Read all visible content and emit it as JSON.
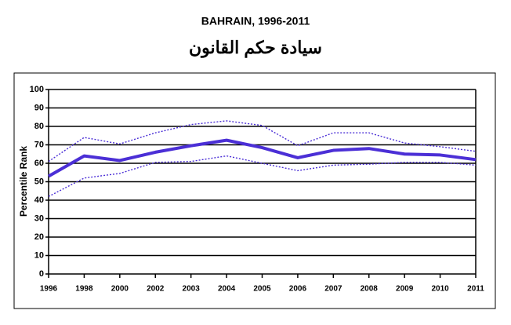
{
  "chart_data": {
    "type": "line",
    "title": "BAHRAIN, 1996-2011",
    "subtitle": "سيادة حكم القانون",
    "y_label": "Percentile Rank",
    "categories": [
      "1996",
      "1998",
      "2000",
      "2002",
      "2003",
      "2004",
      "2005",
      "2006",
      "2007",
      "2008",
      "2009",
      "2010",
      "2011"
    ],
    "series": [
      {
        "color": "#4b2fd6",
        "line_style": "solid",
        "values": [
          53,
          64,
          61.5,
          66,
          69.5,
          72.5,
          68.5,
          63,
          67,
          68,
          65,
          64.5,
          62
        ]
      },
      {
        "color": "#4b2fd6",
        "line_style": "dotted",
        "values": [
          61,
          74,
          70.5,
          76.5,
          81,
          83,
          80.5,
          69.5,
          76.5,
          76.5,
          71,
          69,
          66.5
        ]
      },
      {
        "color": "#4b2fd6",
        "line_style": "dotted",
        "values": [
          42,
          52,
          54.5,
          60.5,
          61,
          64,
          60,
          56,
          59,
          59.5,
          60.5,
          60.5,
          59
        ]
      }
    ],
    "ylim": [
      0,
      100
    ],
    "yticks": [
      0,
      10,
      20,
      30,
      40,
      50,
      60,
      70,
      80,
      90,
      100
    ],
    "grid": true
  }
}
